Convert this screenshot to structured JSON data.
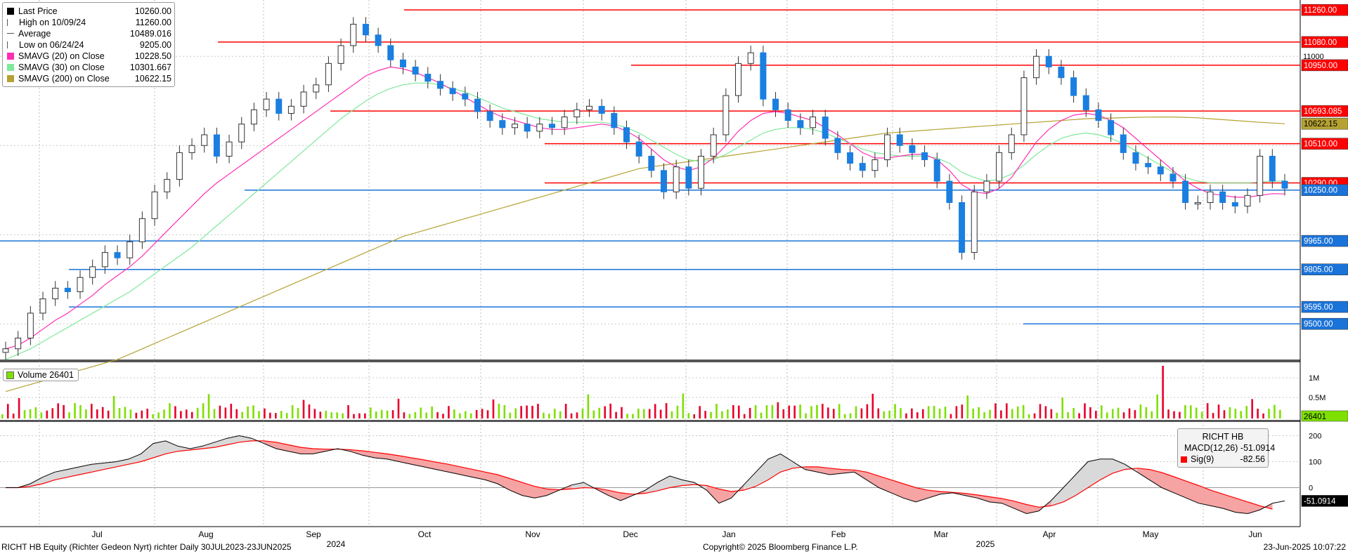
{
  "legend": {
    "last_price": {
      "label": "Last Price",
      "value": "10260.00",
      "color": "#000000"
    },
    "high": {
      "label": "High on 10/09/24",
      "value": "11260.00"
    },
    "average": {
      "label": "Average",
      "value": "10489.016"
    },
    "low": {
      "label": "Low on 06/24/24",
      "value": "9205.00"
    },
    "sma20": {
      "label": "SMAVG (20)  on Close",
      "value": "10228.50",
      "color": "#ff2eb4"
    },
    "sma30": {
      "label": "SMAVG (30)  on Close",
      "value": "10301.667",
      "color": "#7fe89a"
    },
    "sma200": {
      "label": "SMAVG (200)  on Close",
      "value": "10622.15",
      "color": "#b5a233"
    }
  },
  "volume_legend": {
    "label": "Volume",
    "value": "26401",
    "color": "#7ee000"
  },
  "macd_legend": {
    "title": "RICHT HB",
    "macd": {
      "label": "MACD(12,26)",
      "value": "-51.0914",
      "color": "#000000"
    },
    "signal": {
      "label": "Sig(9)",
      "value": "-82.56",
      "color": "#ff0000"
    }
  },
  "footer": {
    "left": "RICHT HB Equity (Richter Gedeon Nyrt) richter  Daily 30JUL2023-23JUN2025",
    "center": "Copyright© 2025 Bloomberg Finance L.P.",
    "right": "23-Jun-2025 10:07:22"
  },
  "chart_data": {
    "type": "candlestick",
    "ticker": "RICHT HB Equity",
    "x_labels": {
      "months": [
        "Jul",
        "Aug",
        "Sep",
        "Oct",
        "Nov",
        "Dec",
        "Jan",
        "Feb",
        "Mar",
        "Apr",
        "May",
        "Jun"
      ],
      "years": [
        "2024",
        "2025"
      ]
    },
    "price_axis": {
      "ylim": [
        9300,
        11300
      ],
      "ticks": [
        11000
      ]
    },
    "resistance_levels": [
      {
        "value": 11260,
        "label": "11260.00",
        "color": "#ff0000"
      },
      {
        "value": 11080,
        "label": "11080.00",
        "color": "#ff0000"
      },
      {
        "value": 10950,
        "label": "10950.00",
        "color": "#ff0000"
      },
      {
        "value": 10693.085,
        "label": "10693.085",
        "color": "#ff0000"
      },
      {
        "value": 10510,
        "label": "10510.00",
        "color": "#ff0000"
      },
      {
        "value": 10290,
        "label": "10290.00",
        "color": "#ff0000"
      }
    ],
    "support_levels": [
      {
        "value": 10250,
        "label": "10250.00",
        "color": "#1a73d9"
      },
      {
        "value": 9965,
        "label": "9965.00",
        "color": "#1a73d9"
      },
      {
        "value": 9805,
        "label": "9805.00",
        "color": "#1a73d9"
      },
      {
        "value": 9595,
        "label": "9595.00",
        "color": "#1a73d9"
      },
      {
        "value": 9500,
        "label": "9500.00",
        "color": "#1a73d9"
      }
    ],
    "right_tags": [
      {
        "value": 10622.15,
        "label": "10622.15",
        "color": "#b5a233"
      }
    ],
    "price_series": {
      "close": [
        9360,
        9420,
        9560,
        9640,
        9700,
        9680,
        9760,
        9820,
        9900,
        9870,
        9960,
        10090,
        10240,
        10310,
        10460,
        10500,
        10560,
        10440,
        10520,
        10620,
        10700,
        10760,
        10680,
        10720,
        10800,
        10840,
        10960,
        11060,
        11180,
        11120,
        11060,
        10980,
        10940,
        10900,
        10860,
        10820,
        10790,
        10760,
        10690,
        10640,
        10600,
        10620,
        10580,
        10620,
        10600,
        10660,
        10700,
        10720,
        10680,
        10600,
        10520,
        10440,
        10360,
        10240,
        10380,
        10260,
        10440,
        10560,
        10780,
        10960,
        11020,
        10760,
        10700,
        10640,
        10600,
        10660,
        10540,
        10460,
        10400,
        10360,
        10420,
        10560,
        10500,
        10460,
        10420,
        10300,
        10180,
        9900,
        10240,
        10300,
        10460,
        10560,
        10880,
        11000,
        10940,
        10880,
        10780,
        10700,
        10640,
        10560,
        10460,
        10400,
        10380,
        10340,
        10300,
        10180,
        10180,
        10240,
        10180,
        10160,
        10220,
        10440,
        10300,
        10260
      ],
      "sma20": [
        9360,
        9380,
        9420,
        9470,
        9520,
        9560,
        9610,
        9660,
        9720,
        9770,
        9820,
        9880,
        9950,
        10020,
        10090,
        10160,
        10230,
        10290,
        10340,
        10390,
        10440,
        10490,
        10540,
        10590,
        10640,
        10690,
        10740,
        10790,
        10840,
        10890,
        10920,
        10940,
        10930,
        10910,
        10880,
        10850,
        10810,
        10770,
        10730,
        10690,
        10660,
        10640,
        10620,
        10600,
        10590,
        10590,
        10600,
        10610,
        10620,
        10610,
        10580,
        10540,
        10480,
        10420,
        10380,
        10360,
        10380,
        10430,
        10500,
        10580,
        10640,
        10680,
        10690,
        10680,
        10660,
        10640,
        10600,
        10560,
        10510,
        10460,
        10430,
        10430,
        10440,
        10450,
        10450,
        10420,
        10360,
        10280,
        10240,
        10230,
        10260,
        10320,
        10420,
        10520,
        10590,
        10640,
        10670,
        10680,
        10670,
        10640,
        10600,
        10540,
        10480,
        10420,
        10360,
        10300,
        10260,
        10230,
        10220,
        10210,
        10210,
        10220,
        10230,
        10228.5
      ],
      "sma30": [
        9300,
        9330,
        9360,
        9400,
        9440,
        9480,
        9520,
        9560,
        9600,
        9640,
        9680,
        9730,
        9780,
        9830,
        9880,
        9930,
        9990,
        10050,
        10110,
        10170,
        10230,
        10290,
        10350,
        10410,
        10470,
        10530,
        10590,
        10650,
        10700,
        10750,
        10790,
        10820,
        10840,
        10850,
        10850,
        10840,
        10820,
        10800,
        10770,
        10740,
        10710,
        10690,
        10670,
        10650,
        10640,
        10630,
        10630,
        10630,
        10630,
        10620,
        10600,
        10570,
        10530,
        10490,
        10450,
        10420,
        10410,
        10420,
        10450,
        10490,
        10530,
        10570,
        10590,
        10600,
        10600,
        10590,
        10570,
        10540,
        10510,
        10480,
        10460,
        10450,
        10440,
        10440,
        10440,
        10430,
        10400,
        10350,
        10320,
        10300,
        10310,
        10340,
        10390,
        10450,
        10500,
        10540,
        10560,
        10570,
        10560,
        10540,
        10510,
        10470,
        10430,
        10390,
        10350,
        10320,
        10300,
        10290,
        10290,
        10290,
        10290,
        10295,
        10300,
        10301.667
      ],
      "sma200": [
        9120,
        9140,
        9160,
        9180,
        9200,
        9220,
        9240,
        9260,
        9280,
        9300,
        9330,
        9360,
        9390,
        9420,
        9450,
        9480,
        9510,
        9540,
        9570,
        9600,
        9630,
        9660,
        9690,
        9720,
        9750,
        9780,
        9810,
        9840,
        9870,
        9900,
        9930,
        9960,
        9990,
        10010,
        10030,
        10050,
        10070,
        10090,
        10110,
        10130,
        10150,
        10170,
        10190,
        10210,
        10230,
        10250,
        10270,
        10290,
        10310,
        10330,
        10350,
        10370,
        10380,
        10390,
        10400,
        10410,
        10420,
        10430,
        10440,
        10450,
        10460,
        10470,
        10480,
        10490,
        10500,
        10510,
        10520,
        10530,
        10540,
        10550,
        10560,
        10570,
        10575,
        10580,
        10585,
        10590,
        10595,
        10600,
        10605,
        10610,
        10615,
        10620,
        10625,
        10630,
        10635,
        10640,
        10645,
        10650,
        10652,
        10654,
        10656,
        10658,
        10659,
        10660,
        10660,
        10658,
        10655,
        10650,
        10645,
        10640,
        10635,
        10630,
        10626,
        10622.15
      ]
    },
    "volume": {
      "ticks": [
        "1M",
        "0.5M"
      ],
      "last_label": "26401",
      "last_value": 26401
    },
    "macd": {
      "ticks": [
        200,
        100,
        0
      ],
      "ylim": [
        -150,
        250
      ],
      "macd_series": [
        0,
        0,
        15,
        40,
        60,
        70,
        80,
        90,
        95,
        100,
        110,
        130,
        170,
        180,
        160,
        150,
        160,
        175,
        190,
        200,
        190,
        170,
        150,
        140,
        130,
        130,
        140,
        150,
        140,
        125,
        115,
        110,
        100,
        90,
        80,
        70,
        60,
        50,
        40,
        30,
        15,
        -10,
        -30,
        -40,
        -30,
        -10,
        10,
        20,
        -5,
        -30,
        -50,
        -30,
        -10,
        20,
        45,
        30,
        20,
        -10,
        -60,
        -40,
        10,
        60,
        110,
        130,
        100,
        70,
        60,
        50,
        55,
        60,
        30,
        0,
        -20,
        -40,
        -55,
        -40,
        -25,
        -20,
        -30,
        -40,
        -55,
        -60,
        -80,
        -100,
        -90,
        -50,
        0,
        50,
        100,
        110,
        110,
        90,
        60,
        30,
        0,
        -20,
        -40,
        -60,
        -70,
        -80,
        -95,
        -100,
        -85,
        -60,
        -51.0914
      ],
      "signal_series": [
        0,
        0,
        5,
        15,
        30,
        40,
        50,
        60,
        70,
        80,
        90,
        100,
        115,
        130,
        140,
        145,
        150,
        155,
        165,
        175,
        180,
        180,
        175,
        165,
        155,
        150,
        148,
        148,
        146,
        142,
        136,
        130,
        123,
        115,
        107,
        98,
        90,
        80,
        70,
        60,
        50,
        35,
        20,
        5,
        -5,
        -8,
        -5,
        0,
        -2,
        -10,
        -20,
        -25,
        -22,
        -12,
        0,
        8,
        12,
        8,
        -5,
        -15,
        -10,
        5,
        30,
        60,
        75,
        80,
        80,
        75,
        70,
        68,
        60,
        45,
        30,
        15,
        0,
        -10,
        -15,
        -18,
        -22,
        -28,
        -35,
        -42,
        -52,
        -65,
        -75,
        -70,
        -55,
        -30,
        0,
        30,
        55,
        70,
        75,
        70,
        58,
        42,
        25,
        8,
        -10,
        -25,
        -40,
        -55,
        -70,
        -82.56
      ]
    }
  }
}
